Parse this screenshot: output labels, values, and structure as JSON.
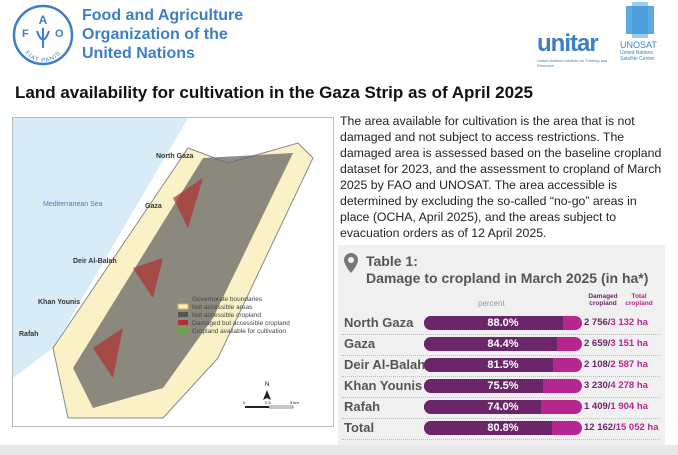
{
  "header": {
    "fao_name": [
      "Food and Agriculture",
      "Organization of the",
      "United Nations"
    ],
    "fao_logo_text": "FIAT PANIS",
    "unitar": {
      "name": "unitar",
      "sub": "United Nations Institute for Training and Research"
    },
    "unosat": {
      "name": "UNOSAT",
      "sub": "United Nations Satellite Centre"
    }
  },
  "title": "Land availability for cultivation in the Gaza Strip as of April 2025",
  "map": {
    "sea_label": "Mediterranean Sea",
    "governorates": [
      "North Gaza",
      "Gaza",
      "Deir Al-Balah",
      "Khan Younis",
      "Rafah"
    ],
    "legend": [
      {
        "label": "Governorate boundaries",
        "color": "#bbbbbb"
      },
      {
        "label": "Not accessible areas",
        "color": "#fbf1c7"
      },
      {
        "label": "Not accessible cropland",
        "color": "#555555"
      },
      {
        "label": "Damaged but accessible cropland",
        "color": "#b03030"
      },
      {
        "label": "Cropland available for cultivation",
        "color": "#5fa845"
      }
    ],
    "north": "N",
    "scale": [
      "0",
      "2.5",
      "5 km"
    ]
  },
  "description": "The area available for cultivation is the area that is not damaged and not subject to access restrictions. The damaged area is assessed based on the baseline cropland dataset for 2023, and the assessment to cropland of March 2025 by FAO and UNOSAT. The area accessible is determined by excluding the so-called “no-go” areas in place (OCHA, April 2025), and the areas subject to evacuation orders as of 12 April 2025.",
  "table": {
    "title": "Table 1:",
    "subtitle": "Damage to cropland in March 2025 (in ha*)",
    "col_percent": "percent",
    "col_damaged": "Damaged cropland",
    "col_total": "Total cropland",
    "rows": [
      {
        "name": "North Gaza",
        "percent": 88.0,
        "label": "88.0%",
        "damaged": "2 756",
        "total": "3 132 ha"
      },
      {
        "name": "Gaza",
        "percent": 84.4,
        "label": "84.4%",
        "damaged": "2 659",
        "total": "3 151 ha"
      },
      {
        "name": "Deir Al-Balah",
        "percent": 81.5,
        "label": "81.5%",
        "damaged": "2 108",
        "total": "2 587 ha"
      },
      {
        "name": "Khan Younis",
        "percent": 75.5,
        "label": "75.5%",
        "damaged": "3 230",
        "total": "4 278 ha"
      },
      {
        "name": "Rafah",
        "percent": 74.0,
        "label": "74.0%",
        "damaged": "1 409",
        "total": "1 904 ha"
      },
      {
        "name": "Total",
        "percent": 80.8,
        "label": "80.8%",
        "damaged": "12 162",
        "total": "15 052 ha"
      }
    ],
    "colors": {
      "damaged": "#6a2669",
      "total": "#b5278f"
    }
  }
}
